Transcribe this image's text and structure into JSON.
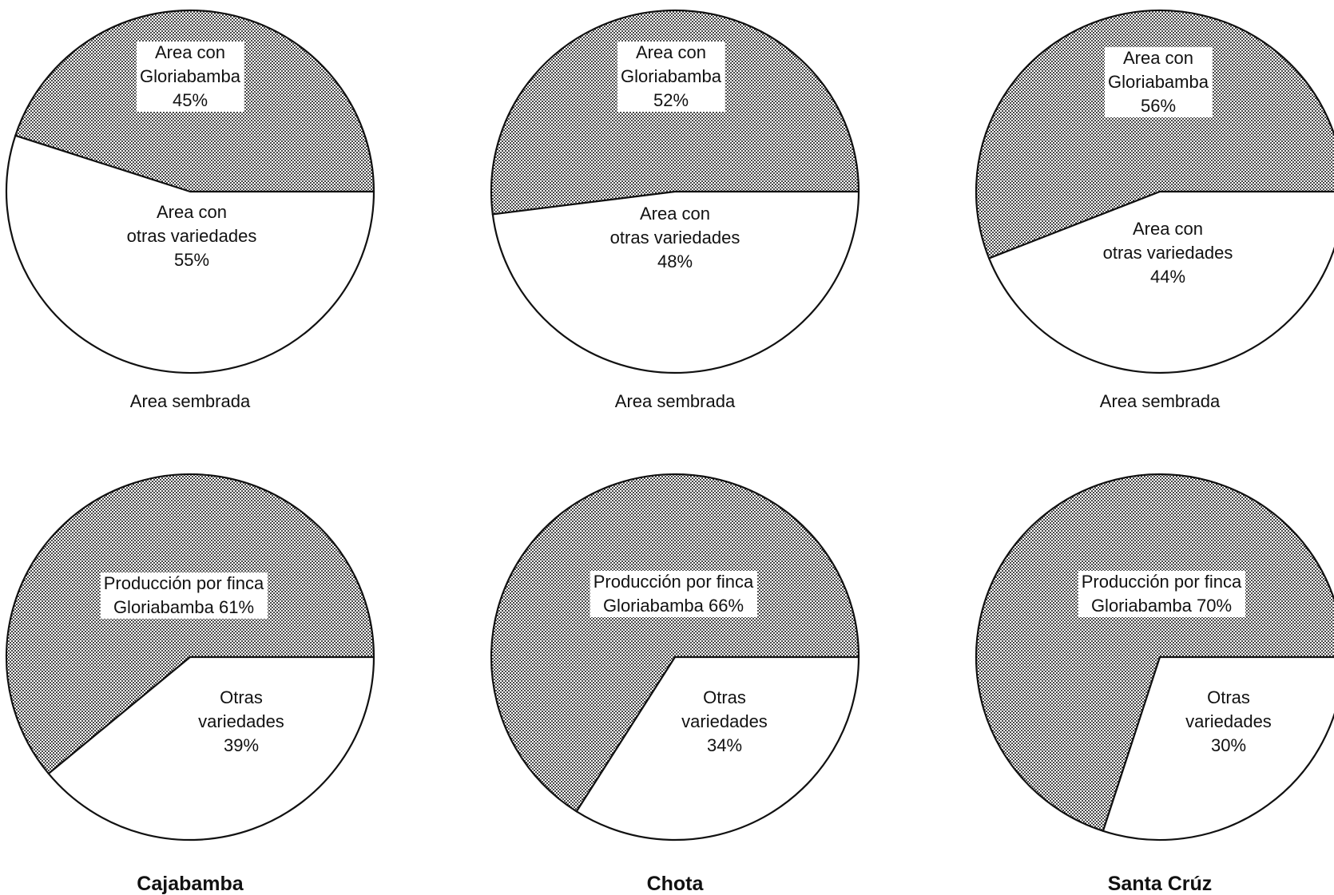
{
  "chart_data": [
    {
      "type": "pie",
      "group": "Cajabamba",
      "caption": "Area sembrada",
      "slices": [
        {
          "lines": [
            "Area con",
            "Gloriabamba",
            "45%"
          ],
          "value": 45,
          "pattern": "dotted"
        },
        {
          "lines": [
            "Area con",
            "otras variedades",
            "55%"
          ],
          "value": 55,
          "pattern": "white"
        }
      ]
    },
    {
      "type": "pie",
      "group": "Chota",
      "caption": "Area sembrada",
      "slices": [
        {
          "lines": [
            "Area con",
            "Gloriabamba",
            "52%"
          ],
          "value": 52,
          "pattern": "dotted"
        },
        {
          "lines": [
            "Area con",
            "otras variedades",
            "48%"
          ],
          "value": 48,
          "pattern": "white"
        }
      ]
    },
    {
      "type": "pie",
      "group": "Santa Crúz",
      "caption": "Area sembrada",
      "slices": [
        {
          "lines": [
            "Area con",
            "Gloriabamba",
            "56%"
          ],
          "value": 56,
          "pattern": "dotted"
        },
        {
          "lines": [
            "Area con",
            "otras variedades",
            "44%"
          ],
          "value": 44,
          "pattern": "white"
        }
      ]
    },
    {
      "type": "pie",
      "group": "Cajabamba",
      "caption": "Cajabamba",
      "slices": [
        {
          "lines": [
            "Producción por finca",
            "Gloriabamba 61%"
          ],
          "value": 61,
          "pattern": "dotted"
        },
        {
          "lines": [
            "Otras",
            "variedades",
            "39%"
          ],
          "value": 39,
          "pattern": "white"
        }
      ]
    },
    {
      "type": "pie",
      "group": "Chota",
      "caption": "Chota",
      "slices": [
        {
          "lines": [
            "Producción por finca",
            "Gloriabamba 66%"
          ],
          "value": 66,
          "pattern": "dotted"
        },
        {
          "lines": [
            "Otras",
            "variedades",
            "34%"
          ],
          "value": 34,
          "pattern": "white"
        }
      ]
    },
    {
      "type": "pie",
      "group": "Santa Crúz",
      "caption": "Santa Crúz",
      "slices": [
        {
          "lines": [
            "Producción por finca",
            "Gloriabamba 70%"
          ],
          "value": 70,
          "pattern": "dotted"
        },
        {
          "lines": [
            "Otras",
            "variedades",
            "30%"
          ],
          "value": 30,
          "pattern": "white"
        }
      ]
    }
  ]
}
